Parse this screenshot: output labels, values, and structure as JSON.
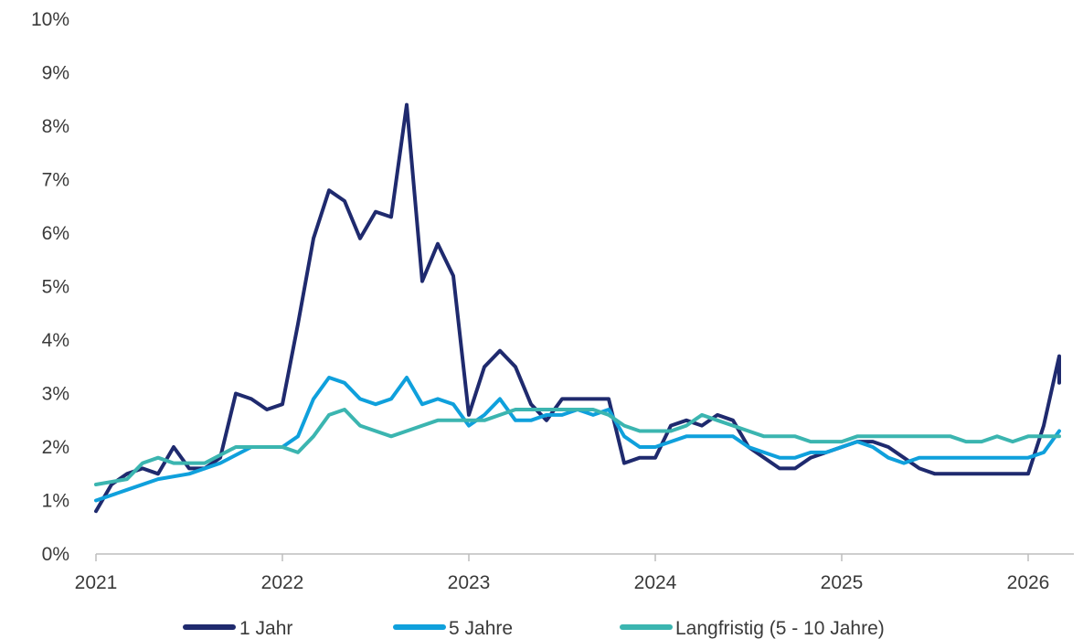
{
  "chart_data": {
    "type": "line",
    "title": "",
    "xlabel": "",
    "ylabel": "",
    "x_ticks": [
      "2021",
      "2022",
      "2023",
      "2024",
      "2025",
      "2026"
    ],
    "y_ticks": [
      "0%",
      "1%",
      "2%",
      "3%",
      "4%",
      "5%",
      "6%",
      "7%",
      "8%",
      "9%",
      "10%"
    ],
    "xlim": [
      "2021-01",
      "2026-03"
    ],
    "ylim": [
      0,
      10
    ],
    "grid": false,
    "legend_position": "bottom",
    "series": [
      {
        "name": "1 Jahr",
        "color": "#1f2a6e",
        "points": [
          [
            "2021-01",
            0.8
          ],
          [
            "2021-02",
            1.3
          ],
          [
            "2021-03",
            1.5
          ],
          [
            "2021-04",
            1.6
          ],
          [
            "2021-05",
            1.5
          ],
          [
            "2021-06",
            2.0
          ],
          [
            "2021-07",
            1.6
          ],
          [
            "2021-08",
            1.6
          ],
          [
            "2021-09",
            1.8
          ],
          [
            "2021-10",
            3.0
          ],
          [
            "2021-11",
            2.9
          ],
          [
            "2021-12",
            2.7
          ],
          [
            "2022-01",
            2.8
          ],
          [
            "2022-02",
            4.3
          ],
          [
            "2022-03",
            5.9
          ],
          [
            "2022-04",
            6.8
          ],
          [
            "2022-05",
            6.6
          ],
          [
            "2022-06",
            5.9
          ],
          [
            "2022-07",
            6.4
          ],
          [
            "2022-08",
            6.3
          ],
          [
            "2022-09",
            8.4
          ],
          [
            "2022-10",
            5.1
          ],
          [
            "2022-11",
            5.8
          ],
          [
            "2022-12",
            5.2
          ],
          [
            "2023-01",
            2.6
          ],
          [
            "2023-02",
            3.5
          ],
          [
            "2023-03",
            3.8
          ],
          [
            "2023-04",
            3.5
          ],
          [
            "2023-05",
            2.8
          ],
          [
            "2023-06",
            2.5
          ],
          [
            "2023-07",
            2.9
          ],
          [
            "2023-08",
            2.9
          ],
          [
            "2023-09",
            2.9
          ],
          [
            "2023-10",
            2.9
          ],
          [
            "2023-11",
            1.7
          ],
          [
            "2023-12",
            1.8
          ],
          [
            "2024-01",
            1.8
          ],
          [
            "2024-02",
            2.4
          ],
          [
            "2024-03",
            2.5
          ],
          [
            "2024-04",
            2.4
          ],
          [
            "2024-05",
            2.6
          ],
          [
            "2024-06",
            2.5
          ],
          [
            "2024-07",
            2.0
          ],
          [
            "2024-08",
            1.8
          ],
          [
            "2024-09",
            1.6
          ],
          [
            "2024-10",
            1.6
          ],
          [
            "2024-11",
            1.8
          ],
          [
            "2024-12",
            1.9
          ],
          [
            "2025-01",
            2.0
          ],
          [
            "2025-02",
            2.1
          ],
          [
            "2025-03",
            2.1
          ],
          [
            "2025-04",
            2.0
          ],
          [
            "2025-05",
            1.8
          ],
          [
            "2025-06",
            1.6
          ],
          [
            "2025-07",
            1.5
          ],
          [
            "2025-08",
            1.5
          ],
          [
            "2025-09",
            1.5
          ],
          [
            "2025-10",
            1.5
          ],
          [
            "2025-11",
            1.5
          ],
          [
            "2025-12",
            1.5
          ],
          [
            "2026-01",
            1.5
          ],
          [
            "2026-02",
            2.4
          ],
          [
            "2026-03",
            3.7
          ],
          [
            "2026-03",
            3.2
          ]
        ]
      },
      {
        "name": "5 Jahre",
        "color": "#0fa0dc",
        "points": [
          [
            "2021-01",
            1.0
          ],
          [
            "2021-03",
            1.2
          ],
          [
            "2021-05",
            1.4
          ],
          [
            "2021-07",
            1.5
          ],
          [
            "2021-09",
            1.7
          ],
          [
            "2021-11",
            2.0
          ],
          [
            "2022-01",
            2.0
          ],
          [
            "2022-02",
            2.2
          ],
          [
            "2022-03",
            2.9
          ],
          [
            "2022-04",
            3.3
          ],
          [
            "2022-05",
            3.2
          ],
          [
            "2022-06",
            2.9
          ],
          [
            "2022-07",
            2.8
          ],
          [
            "2022-08",
            2.9
          ],
          [
            "2022-09",
            3.3
          ],
          [
            "2022-10",
            2.8
          ],
          [
            "2022-11",
            2.9
          ],
          [
            "2022-12",
            2.8
          ],
          [
            "2023-01",
            2.4
          ],
          [
            "2023-02",
            2.6
          ],
          [
            "2023-03",
            2.9
          ],
          [
            "2023-04",
            2.5
          ],
          [
            "2023-05",
            2.5
          ],
          [
            "2023-06",
            2.6
          ],
          [
            "2023-07",
            2.6
          ],
          [
            "2023-08",
            2.7
          ],
          [
            "2023-09",
            2.6
          ],
          [
            "2023-10",
            2.7
          ],
          [
            "2023-11",
            2.2
          ],
          [
            "2023-12",
            2.0
          ],
          [
            "2024-01",
            2.0
          ],
          [
            "2024-02",
            2.1
          ],
          [
            "2024-03",
            2.2
          ],
          [
            "2024-04",
            2.2
          ],
          [
            "2024-05",
            2.2
          ],
          [
            "2024-06",
            2.2
          ],
          [
            "2024-07",
            2.0
          ],
          [
            "2024-08",
            1.9
          ],
          [
            "2024-09",
            1.8
          ],
          [
            "2024-10",
            1.8
          ],
          [
            "2024-11",
            1.9
          ],
          [
            "2024-12",
            1.9
          ],
          [
            "2025-01",
            2.0
          ],
          [
            "2025-02",
            2.1
          ],
          [
            "2025-03",
            2.0
          ],
          [
            "2025-04",
            1.8
          ],
          [
            "2025-05",
            1.7
          ],
          [
            "2025-06",
            1.8
          ],
          [
            "2025-07",
            1.8
          ],
          [
            "2025-08",
            1.8
          ],
          [
            "2025-09",
            1.8
          ],
          [
            "2025-10",
            1.8
          ],
          [
            "2025-11",
            1.8
          ],
          [
            "2025-12",
            1.8
          ],
          [
            "2026-01",
            1.8
          ],
          [
            "2026-02",
            1.9
          ],
          [
            "2026-03",
            2.3
          ]
        ]
      },
      {
        "name": "Langfristig (5 - 10 Jahre)",
        "color": "#3bb5b0",
        "points": [
          [
            "2021-01",
            1.3
          ],
          [
            "2021-03",
            1.4
          ],
          [
            "2021-04",
            1.7
          ],
          [
            "2021-05",
            1.8
          ],
          [
            "2021-06",
            1.7
          ],
          [
            "2021-08",
            1.7
          ],
          [
            "2021-10",
            2.0
          ],
          [
            "2021-12",
            2.0
          ],
          [
            "2022-01",
            2.0
          ],
          [
            "2022-02",
            1.9
          ],
          [
            "2022-03",
            2.2
          ],
          [
            "2022-04",
            2.6
          ],
          [
            "2022-05",
            2.7
          ],
          [
            "2022-06",
            2.4
          ],
          [
            "2022-07",
            2.3
          ],
          [
            "2022-08",
            2.2
          ],
          [
            "2022-09",
            2.3
          ],
          [
            "2022-10",
            2.4
          ],
          [
            "2022-11",
            2.5
          ],
          [
            "2022-12",
            2.5
          ],
          [
            "2023-01",
            2.5
          ],
          [
            "2023-02",
            2.5
          ],
          [
            "2023-03",
            2.6
          ],
          [
            "2023-04",
            2.7
          ],
          [
            "2023-05",
            2.7
          ],
          [
            "2023-06",
            2.7
          ],
          [
            "2023-07",
            2.7
          ],
          [
            "2023-08",
            2.7
          ],
          [
            "2023-09",
            2.7
          ],
          [
            "2023-10",
            2.6
          ],
          [
            "2023-11",
            2.4
          ],
          [
            "2023-12",
            2.3
          ],
          [
            "2024-01",
            2.3
          ],
          [
            "2024-02",
            2.3
          ],
          [
            "2024-03",
            2.4
          ],
          [
            "2024-04",
            2.6
          ],
          [
            "2024-05",
            2.5
          ],
          [
            "2024-06",
            2.4
          ],
          [
            "2024-07",
            2.3
          ],
          [
            "2024-08",
            2.2
          ],
          [
            "2024-09",
            2.2
          ],
          [
            "2024-10",
            2.2
          ],
          [
            "2024-11",
            2.1
          ],
          [
            "2024-12",
            2.1
          ],
          [
            "2025-01",
            2.1
          ],
          [
            "2025-02",
            2.2
          ],
          [
            "2025-03",
            2.2
          ],
          [
            "2025-04",
            2.2
          ],
          [
            "2025-05",
            2.2
          ],
          [
            "2025-06",
            2.2
          ],
          [
            "2025-07",
            2.2
          ],
          [
            "2025-08",
            2.2
          ],
          [
            "2025-09",
            2.1
          ],
          [
            "2025-10",
            2.1
          ],
          [
            "2025-11",
            2.2
          ],
          [
            "2025-12",
            2.1
          ],
          [
            "2026-01",
            2.2
          ],
          [
            "2026-02",
            2.2
          ],
          [
            "2026-03",
            2.2
          ]
        ]
      }
    ]
  }
}
